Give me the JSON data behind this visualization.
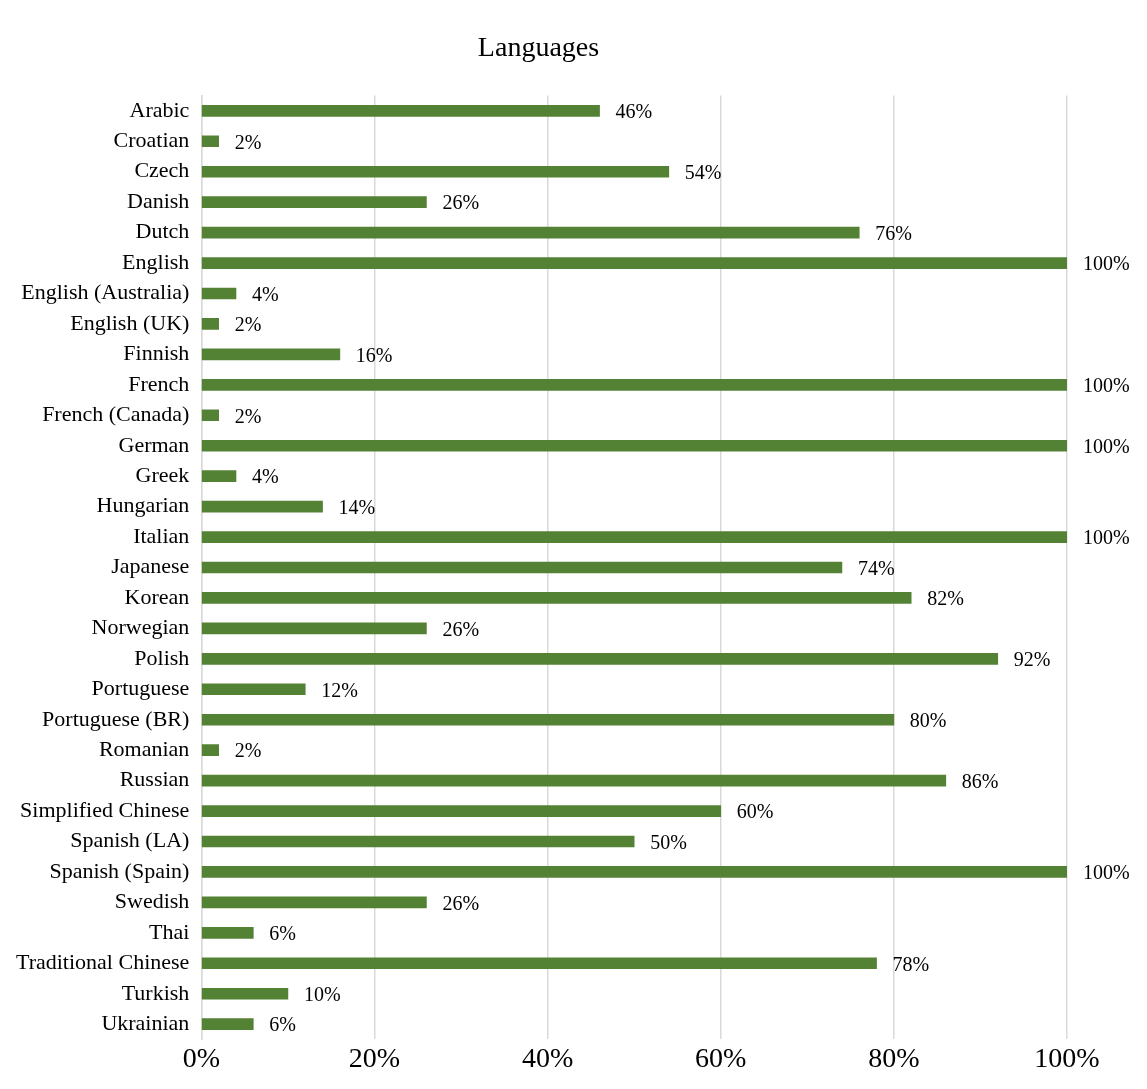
{
  "chart_data": {
    "type": "bar",
    "title": "Languages",
    "orientation": "horizontal",
    "categories": [
      "Arabic",
      "Croatian",
      "Czech",
      "Danish",
      "Dutch",
      "English",
      "English (Australia)",
      "English (UK)",
      "Finnish",
      "French",
      "French (Canada)",
      "German",
      "Greek",
      "Hungarian",
      "Italian",
      "Japanese",
      "Korean",
      "Norwegian",
      "Polish",
      "Portuguese",
      "Portuguese (BR)",
      "Romanian",
      "Russian",
      "Simplified Chinese",
      "Spanish (LA)",
      "Spanish (Spain)",
      "Swedish",
      "Thai",
      "Traditional Chinese",
      "Turkish",
      "Ukrainian"
    ],
    "values": [
      46,
      2,
      54,
      26,
      76,
      100,
      4,
      2,
      16,
      100,
      2,
      100,
      4,
      14,
      100,
      74,
      82,
      26,
      92,
      12,
      80,
      2,
      86,
      60,
      50,
      100,
      26,
      6,
      78,
      10,
      6
    ],
    "value_labels": [
      "46%",
      "2%",
      "54%",
      "26%",
      "76%",
      "100%",
      "4%",
      "2%",
      "16%",
      "100%",
      "2%",
      "100%",
      "4%",
      "14%",
      "100%",
      "74%",
      "82%",
      "26%",
      "92%",
      "12%",
      "80%",
      "2%",
      "86%",
      "60%",
      "50%",
      "100%",
      "26%",
      "6%",
      "78%",
      "10%",
      "6%"
    ],
    "color": "#548235",
    "xlim": [
      0,
      100
    ],
    "xticks": [
      {
        "value": 0,
        "label": "0%"
      },
      {
        "value": 20,
        "label": "20%"
      },
      {
        "value": 40,
        "label": "40%"
      },
      {
        "value": 60,
        "label": "60%"
      },
      {
        "value": 80,
        "label": "80%"
      },
      {
        "value": 100,
        "label": "100%"
      }
    ],
    "grid": "x",
    "legend": false
  }
}
